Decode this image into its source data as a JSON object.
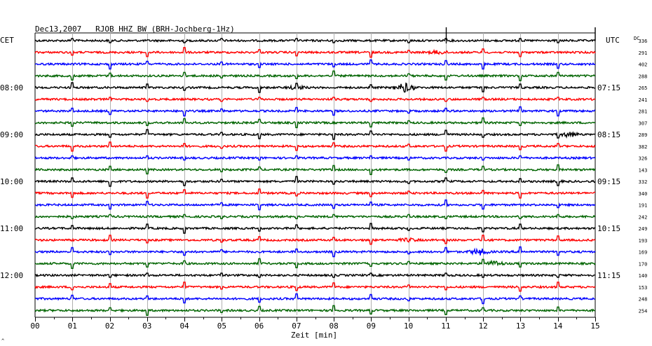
{
  "chart_data": {
    "type": "line",
    "title": "Dec13,2007   RJOB HHZ BW (BRH-Jochberg-1Hz)",
    "xlabel": "Zeit [min]",
    "ylabel": "",
    "left_axis_label": "CET",
    "right_axis_label": "UTC",
    "dc_label": "DC",
    "corner_mark": "^",
    "x_ticks": [
      "00",
      "01",
      "02",
      "03",
      "04",
      "05",
      "06",
      "07",
      "08",
      "09",
      "10",
      "11",
      "12",
      "13",
      "14",
      "15"
    ],
    "xlim": [
      0,
      15
    ],
    "left_hour_labels": [
      "08:00",
      "09:00",
      "10:00",
      "11:00",
      "12:00"
    ],
    "right_hour_labels": [
      "07:15",
      "08:15",
      "09:15",
      "10:15",
      "11:15"
    ],
    "hour_label_trace_index": [
      4,
      8,
      12,
      16,
      20
    ],
    "trace_colors": [
      "#000000",
      "#ff0000",
      "#0000ff",
      "#006400"
    ],
    "dc_values": [
      336,
      291,
      402,
      288,
      265,
      241,
      281,
      307,
      289,
      382,
      326,
      143,
      332,
      340,
      191,
      242,
      249,
      193,
      169,
      170,
      140,
      153,
      248,
      254
    ],
    "spikes_min": [
      1,
      2,
      3,
      4,
      5,
      6,
      7,
      8,
      9,
      10,
      11,
      12,
      13,
      14
    ],
    "events": [
      {
        "trace": 1,
        "minute": 10.8,
        "amp": 2
      },
      {
        "trace": 4,
        "minute": 7.0,
        "amp": 2
      },
      {
        "trace": 4,
        "minute": 9.9,
        "amp": 6
      },
      {
        "trace": 8,
        "minute": 14.3,
        "amp": 3
      },
      {
        "trace": 17,
        "minute": 10.0,
        "amp": 2
      },
      {
        "trace": 18,
        "minute": 11.9,
        "amp": 4
      },
      {
        "trace": 19,
        "minute": 12.3,
        "amp": 3
      }
    ]
  }
}
